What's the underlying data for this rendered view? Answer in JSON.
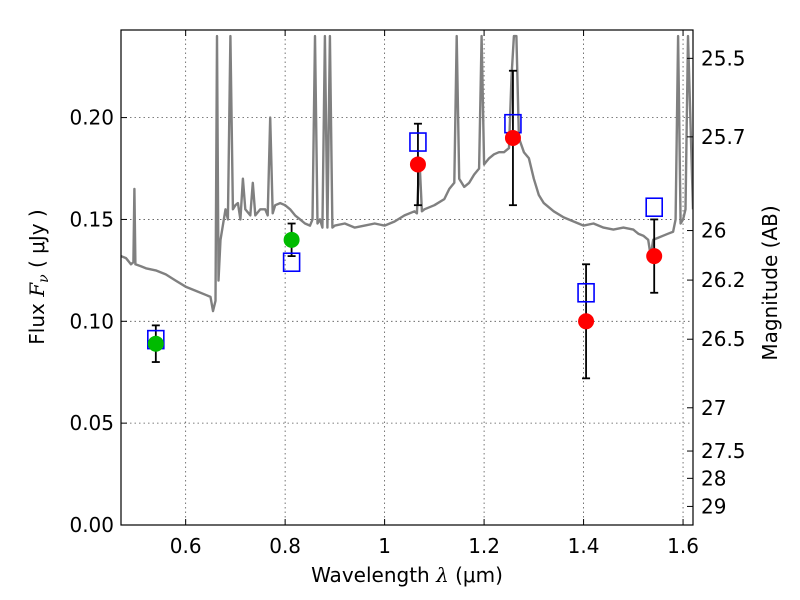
{
  "chart_data": {
    "type": "scatter",
    "xlabel": "Wavelength  λ (μm)",
    "xlabel_parts": {
      "text": "Wavelength  ",
      "symbol": "λ",
      "unit": " (μm)"
    },
    "ylabel": "Flux  Fν  ( μJy )",
    "ylabel_parts": {
      "text": "Flux  ",
      "symbol": "F",
      "sub": "ν",
      "unit": "  ( μJy )"
    },
    "ylabel_right": "Magnitude (AB)",
    "xlim": [
      0.47,
      1.62
    ],
    "ylim": [
      0.0,
      0.243
    ],
    "xticks": [
      0.6,
      0.8,
      1.0,
      1.2,
      1.4,
      1.6
    ],
    "xtick_labels": [
      "0.6",
      "0.8",
      "1",
      "1.2",
      "1.4",
      "1.6"
    ],
    "yticks": [
      0.0,
      0.05,
      0.1,
      0.15,
      0.2
    ],
    "ytick_labels": [
      "0.00",
      "0.05",
      "0.10",
      "0.15",
      "0.20"
    ],
    "right_ticks": [
      {
        "label": "25.5",
        "mag": 25.5
      },
      {
        "label": "25.7",
        "mag": 25.7
      },
      {
        "label": "26",
        "mag": 26.0
      },
      {
        "label": "26.2",
        "mag": 26.2
      },
      {
        "label": "26.5",
        "mag": 26.5
      },
      {
        "label": "27",
        "mag": 27.0
      },
      {
        "label": "27.5",
        "mag": 27.5
      },
      {
        "label": "28",
        "mag": 28.0
      },
      {
        "label": "29",
        "mag": 29.0
      }
    ],
    "grid": true,
    "colors": {
      "model": "#808080",
      "model_fit": "#0000ff",
      "green": "#00bb00",
      "red": "#ff0000",
      "errorbar": "#000000"
    },
    "model_spectrum": [
      [
        0.47,
        0.132
      ],
      [
        0.48,
        0.131
      ],
      [
        0.49,
        0.128
      ],
      [
        0.495,
        0.129
      ],
      [
        0.497,
        0.165
      ],
      [
        0.499,
        0.128
      ],
      [
        0.51,
        0.127
      ],
      [
        0.52,
        0.126
      ],
      [
        0.54,
        0.125
      ],
      [
        0.56,
        0.123
      ],
      [
        0.58,
        0.12
      ],
      [
        0.6,
        0.117
      ],
      [
        0.62,
        0.115
      ],
      [
        0.64,
        0.113
      ],
      [
        0.65,
        0.112
      ],
      [
        0.655,
        0.105
      ],
      [
        0.66,
        0.11
      ],
      [
        0.663,
        0.24
      ],
      [
        0.666,
        0.12
      ],
      [
        0.67,
        0.14
      ],
      [
        0.68,
        0.155
      ],
      [
        0.685,
        0.15
      ],
      [
        0.69,
        0.24
      ],
      [
        0.695,
        0.155
      ],
      [
        0.7,
        0.157
      ],
      [
        0.705,
        0.158
      ],
      [
        0.71,
        0.15
      ],
      [
        0.715,
        0.17
      ],
      [
        0.72,
        0.155
      ],
      [
        0.73,
        0.152
      ],
      [
        0.735,
        0.168
      ],
      [
        0.74,
        0.152
      ],
      [
        0.75,
        0.155
      ],
      [
        0.76,
        0.155
      ],
      [
        0.765,
        0.152
      ],
      [
        0.77,
        0.2
      ],
      [
        0.775,
        0.153
      ],
      [
        0.78,
        0.157
      ],
      [
        0.79,
        0.158
      ],
      [
        0.8,
        0.157
      ],
      [
        0.81,
        0.155
      ],
      [
        0.82,
        0.152
      ],
      [
        0.83,
        0.15
      ],
      [
        0.84,
        0.148
      ],
      [
        0.85,
        0.147
      ],
      [
        0.855,
        0.15
      ],
      [
        0.86,
        0.24
      ],
      [
        0.865,
        0.148
      ],
      [
        0.87,
        0.15
      ],
      [
        0.875,
        0.146
      ],
      [
        0.88,
        0.24
      ],
      [
        0.885,
        0.146
      ],
      [
        0.89,
        0.24
      ],
      [
        0.895,
        0.146
      ],
      [
        0.9,
        0.147
      ],
      [
        0.92,
        0.148
      ],
      [
        0.94,
        0.146
      ],
      [
        0.96,
        0.147
      ],
      [
        0.98,
        0.148
      ],
      [
        1.0,
        0.147
      ],
      [
        1.02,
        0.149
      ],
      [
        1.04,
        0.152
      ],
      [
        1.06,
        0.154
      ],
      [
        1.065,
        0.153
      ],
      [
        1.07,
        0.18
      ],
      [
        1.075,
        0.154
      ],
      [
        1.08,
        0.155
      ],
      [
        1.1,
        0.157
      ],
      [
        1.12,
        0.16
      ],
      [
        1.13,
        0.165
      ],
      [
        1.14,
        0.168
      ],
      [
        1.145,
        0.24
      ],
      [
        1.15,
        0.17
      ],
      [
        1.16,
        0.166
      ],
      [
        1.17,
        0.168
      ],
      [
        1.18,
        0.172
      ],
      [
        1.19,
        0.175
      ],
      [
        1.195,
        0.24
      ],
      [
        1.2,
        0.177
      ],
      [
        1.21,
        0.18
      ],
      [
        1.22,
        0.182
      ],
      [
        1.23,
        0.183
      ],
      [
        1.24,
        0.183
      ],
      [
        1.25,
        0.185
      ],
      [
        1.255,
        0.22
      ],
      [
        1.26,
        0.24
      ],
      [
        1.265,
        0.24
      ],
      [
        1.27,
        0.19
      ],
      [
        1.28,
        0.183
      ],
      [
        1.29,
        0.18
      ],
      [
        1.3,
        0.17
      ],
      [
        1.31,
        0.162
      ],
      [
        1.32,
        0.158
      ],
      [
        1.34,
        0.154
      ],
      [
        1.36,
        0.151
      ],
      [
        1.38,
        0.149
      ],
      [
        1.4,
        0.147
      ],
      [
        1.42,
        0.148
      ],
      [
        1.44,
        0.146
      ],
      [
        1.46,
        0.145
      ],
      [
        1.48,
        0.146
      ],
      [
        1.5,
        0.145
      ],
      [
        1.51,
        0.143
      ],
      [
        1.52,
        0.142
      ],
      [
        1.53,
        0.14
      ],
      [
        1.535,
        0.132
      ],
      [
        1.54,
        0.14
      ],
      [
        1.55,
        0.141
      ],
      [
        1.56,
        0.142
      ],
      [
        1.57,
        0.143
      ],
      [
        1.58,
        0.144
      ],
      [
        1.585,
        0.15
      ],
      [
        1.59,
        0.24
      ],
      [
        1.595,
        0.148
      ],
      [
        1.6,
        0.15
      ],
      [
        1.605,
        0.155
      ],
      [
        1.61,
        0.24
      ],
      [
        1.62,
        0.155
      ]
    ],
    "model_fit_points": [
      {
        "x": 0.54,
        "y": 0.091
      },
      {
        "x": 0.813,
        "y": 0.129
      },
      {
        "x": 1.067,
        "y": 0.188
      },
      {
        "x": 1.258,
        "y": 0.197
      },
      {
        "x": 1.405,
        "y": 0.114
      },
      {
        "x": 1.542,
        "y": 0.156
      }
    ],
    "observed_points": [
      {
        "x": 0.54,
        "y": 0.089,
        "err": 0.009,
        "color": "green"
      },
      {
        "x": 0.813,
        "y": 0.14,
        "err": 0.008,
        "color": "green"
      },
      {
        "x": 1.067,
        "y": 0.177,
        "err": 0.02,
        "color": "red"
      },
      {
        "x": 1.258,
        "y": 0.19,
        "err": 0.033,
        "color": "red"
      },
      {
        "x": 1.405,
        "y": 0.1,
        "err": 0.028,
        "color": "red"
      },
      {
        "x": 1.542,
        "y": 0.132,
        "err": 0.018,
        "color": "red"
      }
    ]
  }
}
